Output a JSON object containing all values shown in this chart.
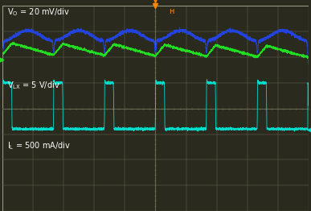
{
  "background_color": "#2a2a1e",
  "grid_color": "#666655",
  "border_color": "#999988",
  "figsize": [
    3.87,
    2.62
  ],
  "dpi": 100,
  "color_vo": "#2244dd",
  "color_vlx": "#00ddcc",
  "color_il": "#22dd22",
  "orange_marker_color": "#ff8800",
  "label_vo": "V_O = 20 mV/div",
  "label_vlx": "V_LX = 5 V/div",
  "label_il": "I_L = 500 mA/div",
  "n_cols": 10,
  "n_rows": 8,
  "num_cycles": 6,
  "duty": 0.18
}
